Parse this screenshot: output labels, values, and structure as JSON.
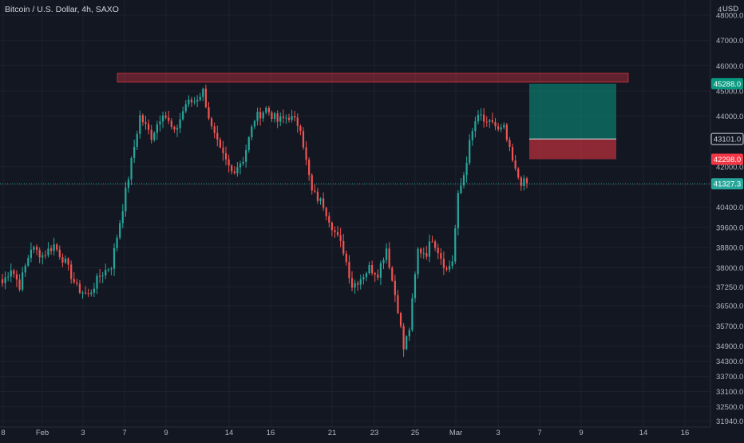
{
  "header": {
    "symbol_title": "Bitcoin / U.S. Dollar, 4h, SAXO"
  },
  "price_axis": {
    "currency": "USD",
    "top_partial_label": "4",
    "ticks": [
      "48000.0",
      "47000.0",
      "46000.0",
      "45000.0",
      "44000.0",
      "42000.0",
      "41300.0",
      "40400.0",
      "39600.0",
      "38800.0",
      "38000.0",
      "37250.0",
      "36500.0",
      "35700.0",
      "34900.0",
      "34300.0",
      "33700.0",
      "33100.0",
      "32500.0",
      "31940.0"
    ],
    "tags": [
      {
        "label": "45288.0",
        "bg": "#089981",
        "fg": "#ffffff"
      },
      {
        "label": "43101.0",
        "bg": "#131722",
        "fg": "#d1d4dc",
        "border": "#d1d4dc"
      },
      {
        "label": "42298.0",
        "bg": "#f23645",
        "fg": "#ffffff"
      },
      {
        "label": "41327.3",
        "bg": "#26a69a",
        "fg": "#ffffff"
      }
    ]
  },
  "time_axis": {
    "ticks": [
      "8",
      "Feb",
      "3",
      "7",
      "9",
      "14",
      "16",
      "21",
      "23",
      "25",
      "Mar",
      "3",
      "7",
      "9",
      "14",
      "16"
    ]
  },
  "colors": {
    "up": "#26a69a",
    "down": "#ef5350",
    "grid": "#1e222d",
    "bg": "#131722"
  },
  "chart_data": {
    "type": "candlestick",
    "title": "Bitcoin / U.S. Dollar, 4h, SAXO",
    "ylim": [
      31700,
      48600
    ],
    "grid": true,
    "close_path": [
      [
        0,
        37400
      ],
      [
        3,
        38000
      ],
      [
        6,
        37300
      ],
      [
        10,
        38800
      ],
      [
        14,
        38500
      ],
      [
        18,
        38900
      ],
      [
        22,
        38200
      ],
      [
        26,
        37200
      ],
      [
        30,
        36900
      ],
      [
        34,
        37700
      ],
      [
        38,
        38100
      ],
      [
        42,
        40400
      ],
      [
        45,
        42200
      ],
      [
        48,
        44000
      ],
      [
        52,
        43200
      ],
      [
        56,
        44200
      ],
      [
        60,
        43300
      ],
      [
        64,
        44500
      ],
      [
        67,
        44600
      ],
      [
        70,
        45000
      ],
      [
        73,
        43500
      ],
      [
        76,
        42600
      ],
      [
        80,
        41800
      ],
      [
        84,
        42300
      ],
      [
        88,
        43900
      ],
      [
        92,
        44300
      ],
      [
        96,
        43800
      ],
      [
        100,
        44000
      ],
      [
        104,
        43600
      ],
      [
        106,
        42200
      ],
      [
        108,
        41000
      ],
      [
        112,
        40500
      ],
      [
        116,
        39400
      ],
      [
        119,
        38700
      ],
      [
        122,
        37300
      ],
      [
        125,
        37600
      ],
      [
        128,
        38000
      ],
      [
        131,
        37800
      ],
      [
        134,
        38800
      ],
      [
        136,
        37500
      ],
      [
        138,
        36400
      ],
      [
        140,
        34800
      ],
      [
        142,
        35600
      ],
      [
        145,
        38700
      ],
      [
        148,
        38600
      ],
      [
        150,
        39200
      ],
      [
        152,
        38700
      ],
      [
        155,
        37900
      ],
      [
        157,
        38300
      ],
      [
        159,
        40800
      ],
      [
        161,
        41700
      ],
      [
        163,
        42900
      ],
      [
        165,
        43800
      ],
      [
        167,
        44000
      ],
      [
        169,
        43600
      ],
      [
        171,
        43800
      ],
      [
        173,
        43400
      ],
      [
        175,
        43500
      ],
      [
        177,
        42600
      ],
      [
        179,
        41800
      ],
      [
        181,
        41400
      ],
      [
        183,
        41327
      ]
    ],
    "resistance_zone": [
      45350,
      45700
    ],
    "position": {
      "type": "long",
      "entry": 43101.0,
      "target": 45288.0,
      "stop": 42298.0
    },
    "last_price": 41327.3
  }
}
